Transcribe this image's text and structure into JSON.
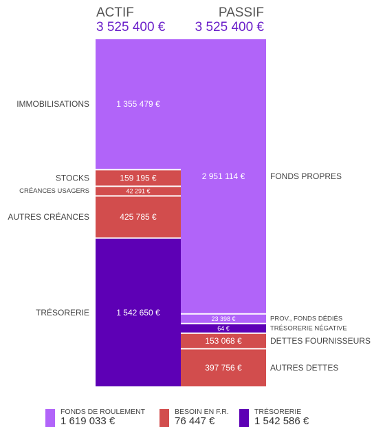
{
  "header": {
    "actif_title": "ACTIF",
    "actif_total": "3 525 400 €",
    "passif_title": "PASSIF",
    "passif_total": "3 525 400 €"
  },
  "colors": {
    "fonds": "#b164f9",
    "besoin": "#d24d4d",
    "tresorerie": "#5d00b5",
    "accent": "#6a1fc9"
  },
  "chart_data": {
    "type": "bar",
    "subtype": "stacked-balance-sheet",
    "total": 3525400,
    "columns": [
      {
        "name": "ACTIF",
        "total_label": "3 525 400 €",
        "segments": [
          {
            "label": "IMMOBILISATIONS",
            "value": 1355479,
            "value_label": "1 355 479 €",
            "color_key": "fonds",
            "label_size": "normal"
          },
          {
            "label": "STOCKS",
            "value": 159195,
            "value_label": "159 195 €",
            "color_key": "besoin",
            "label_size": "normal"
          },
          {
            "label": "CRÉANCES USAGERS",
            "value": 42291,
            "value_label": "42 291 €",
            "color_key": "besoin",
            "label_size": "small"
          },
          {
            "label": "AUTRES CRÉANCES",
            "value": 425785,
            "value_label": "425 785 €",
            "color_key": "besoin",
            "label_size": "normal"
          },
          {
            "label": "TRÉSORERIE",
            "value": 1542650,
            "value_label": "1 542 650 €",
            "color_key": "tresorerie",
            "label_size": "normal"
          }
        ]
      },
      {
        "name": "PASSIF",
        "total_label": "3 525 400 €",
        "segments": [
          {
            "label": "FONDS PROPRES",
            "value": 2951114,
            "value_label": "2 951 114 €",
            "color_key": "fonds",
            "label_size": "normal"
          },
          {
            "label": "PROV., FONDS DÉDIÉS",
            "value": 23398,
            "value_label": "23 398 €",
            "color_key": "fonds",
            "label_size": "small"
          },
          {
            "label": "TRÉSORERIE NÉGATIVE",
            "value": 64,
            "value_label": "64 €",
            "color_key": "tresorerie",
            "label_size": "small"
          },
          {
            "label": "DETTES FOURNISSEURS",
            "value": 153068,
            "value_label": "153 068 €",
            "color_key": "besoin",
            "label_size": "normal"
          },
          {
            "label": "AUTRES DETTES",
            "value": 397756,
            "value_label": "397 756 €",
            "color_key": "besoin",
            "label_size": "normal"
          }
        ]
      }
    ],
    "legend": [
      {
        "label": "FONDS DE ROULEMENT",
        "value": 1619033,
        "value_label": "1 619 033 €",
        "color_key": "fonds"
      },
      {
        "label": "BESOIN EN F.R.",
        "value": 76447,
        "value_label": "76 447 €",
        "color_key": "besoin"
      },
      {
        "label": "TRÉSORERIE",
        "value": 1542586,
        "value_label": "1 542 586 €",
        "color_key": "tresorerie"
      }
    ]
  }
}
